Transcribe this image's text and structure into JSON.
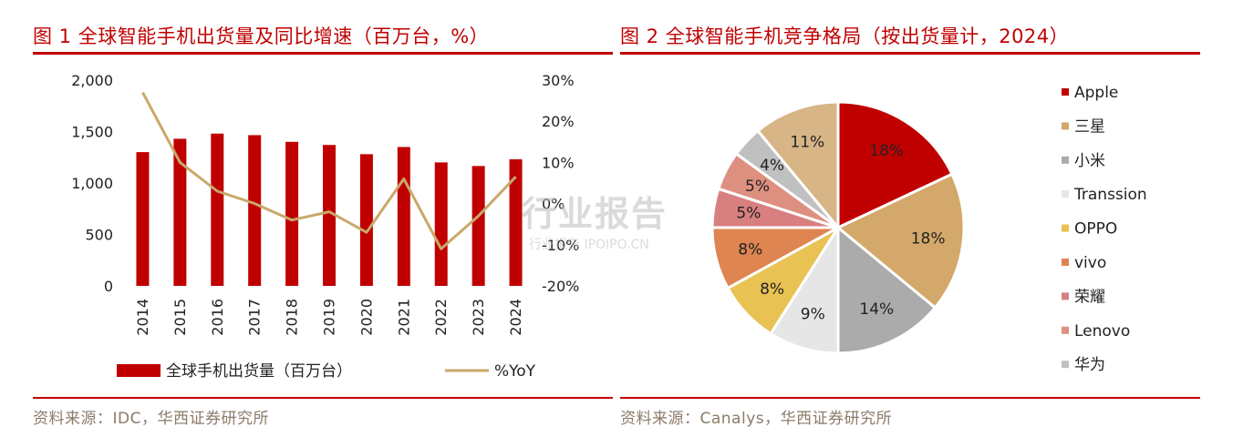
{
  "left": {
    "figure_title": "图 1 全球智能手机出货量及同比增速（百万台，%）",
    "source": "资料来源：IDC，华西证券研究所"
  },
  "right": {
    "figure_title": "图 2 全球智能手机竞争格局（按出货量计，2024）",
    "source": "资料来源：Canalys，华西证券研究所"
  },
  "watermark": {
    "main": "行业报告",
    "sub": "行业报告 IPOIPO.CN"
  },
  "chart_data": [
    {
      "type": "bar",
      "categories": [
        "2014",
        "2015",
        "2016",
        "2017",
        "2018",
        "2019",
        "2020",
        "2021",
        "2022",
        "2023",
        "2024"
      ],
      "series": [
        {
          "name": "全球手机出货量（百万台）",
          "type": "bar",
          "axis": "left",
          "color": "#c00000",
          "values": [
            1300,
            1430,
            1480,
            1465,
            1400,
            1370,
            1280,
            1350,
            1200,
            1165,
            1230
          ]
        },
        {
          "name": "%YoY",
          "type": "line",
          "axis": "right",
          "color": "#c9a86a",
          "values": [
            27,
            10,
            3,
            0,
            -4,
            -2,
            -7,
            6,
            -11,
            -3,
            6.5
          ]
        }
      ],
      "left_axis": {
        "ylim": [
          0,
          2000
        ],
        "ticks": [
          0,
          500,
          1000,
          1500,
          2000
        ],
        "tick_labels": [
          "0",
          "500",
          "1,000",
          "1,500",
          "2,000"
        ]
      },
      "right_axis": {
        "ylim": [
          -20,
          30
        ],
        "ticks": [
          -20,
          -10,
          0,
          10,
          20,
          30
        ],
        "tick_labels": [
          "-20%",
          "-10%",
          "0%",
          "10%",
          "20%",
          "30%"
        ]
      },
      "grid": false,
      "legend": "bottom"
    },
    {
      "type": "pie",
      "legend": "right",
      "slices": [
        {
          "name": "Apple",
          "value": 18,
          "label": "18%",
          "color": "#c00000"
        },
        {
          "name": "三星",
          "value": 18,
          "label": "18%",
          "color": "#d4a86a"
        },
        {
          "name": "小米",
          "value": 14,
          "label": "14%",
          "color": "#ababab"
        },
        {
          "name": "Transsion",
          "value": 9,
          "label": "9%",
          "color": "#e6e6e6"
        },
        {
          "name": "OPPO",
          "value": 8,
          "label": "8%",
          "color": "#e8c252"
        },
        {
          "name": "vivo",
          "value": 8,
          "label": "8%",
          "color": "#de8552"
        },
        {
          "name": "荣耀",
          "value": 5,
          "label": "5%",
          "color": "#d88080"
        },
        {
          "name": "Lenovo",
          "value": 5,
          "label": "5%",
          "color": "#de9080"
        },
        {
          "name": "华为",
          "value": 4,
          "label": "4%",
          "color": "#c0c0c0"
        },
        {
          "name": "",
          "value": 11,
          "label": "11%",
          "color": "#d7b587"
        }
      ]
    }
  ]
}
